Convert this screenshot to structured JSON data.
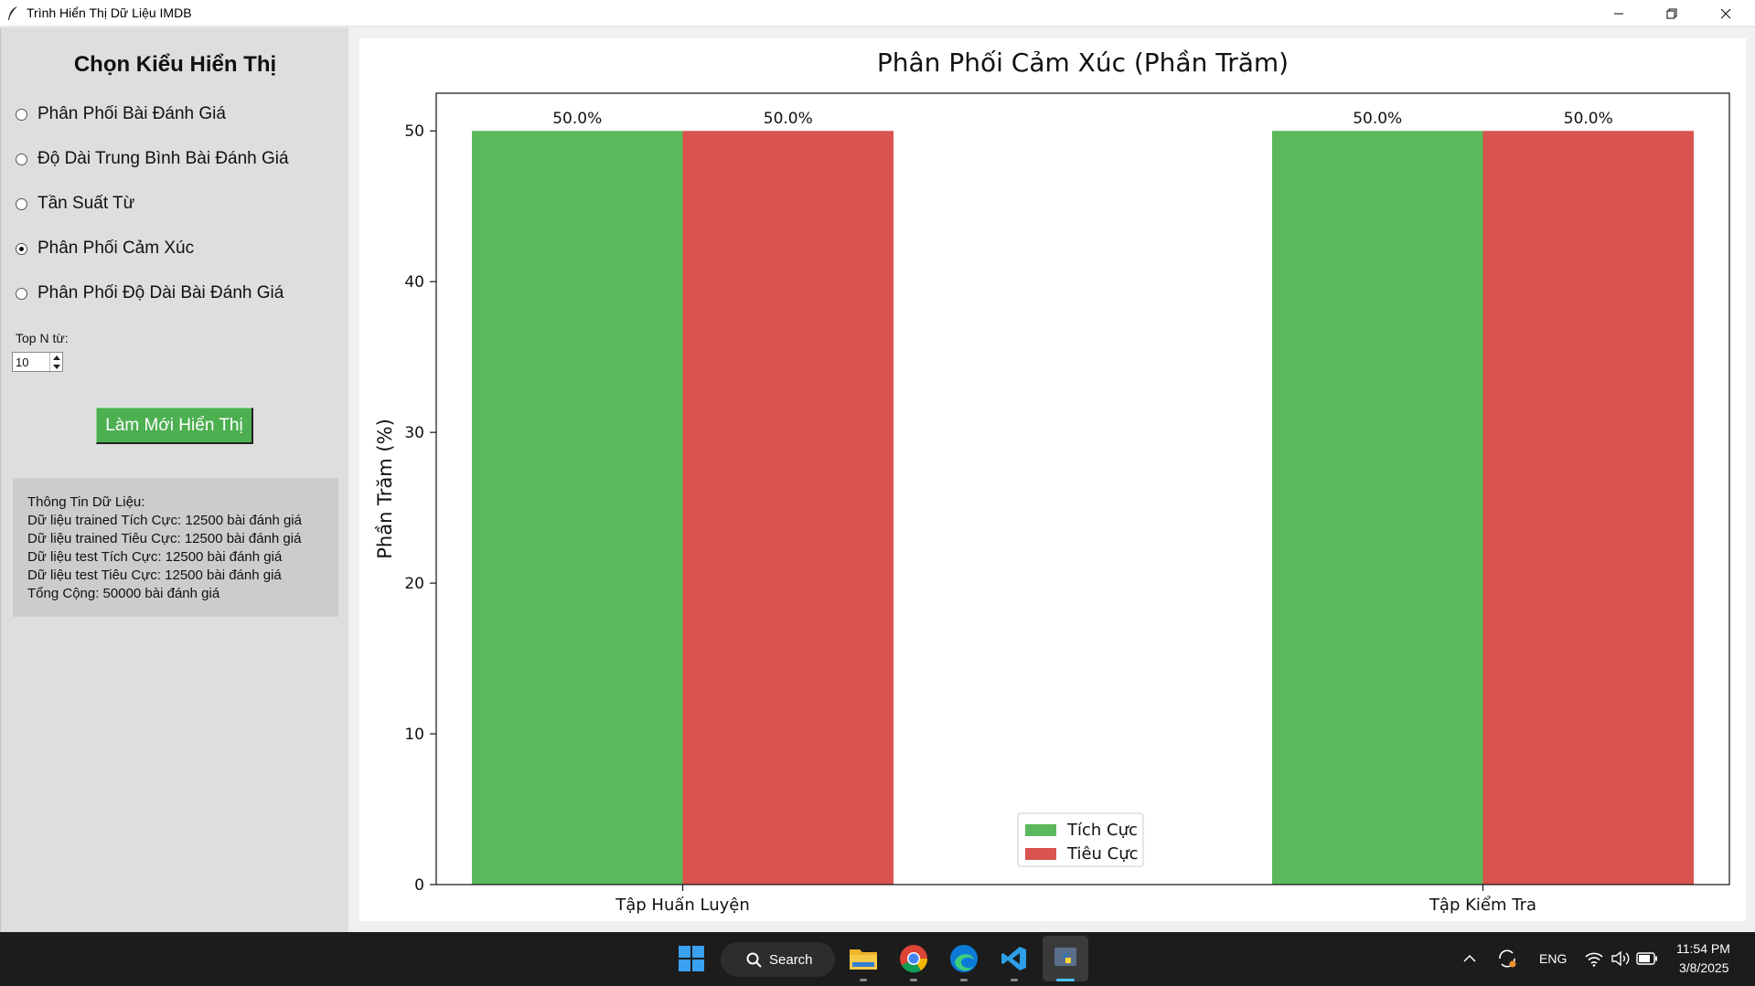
{
  "window": {
    "title": "Trình Hiển Thị Dữ Liệu IMDB"
  },
  "sidebar": {
    "title": "Chọn Kiểu Hiển Thị",
    "options": [
      {
        "label": "Phân Phối Bài Đánh Giá",
        "selected": false
      },
      {
        "label": "Độ Dài Trung Bình Bài Đánh Giá",
        "selected": false
      },
      {
        "label": "Tần Suất Từ",
        "selected": false
      },
      {
        "label": "Phân Phối Cảm Xúc",
        "selected": true
      },
      {
        "label": "Phân Phối Độ Dài Bài Đánh Giá",
        "selected": false
      }
    ],
    "top_n_label": "Top N từ:",
    "top_n_value": "10",
    "refresh_label": "Làm Mới Hiển Thị",
    "info_lines": [
      "Thông Tin Dữ Liệu:",
      "Dữ liệu trained Tích Cực: 12500 bài đánh giá",
      "Dữ liệu trained Tiêu Cực: 12500 bài đánh giá",
      "Dữ liệu test Tích Cực: 12500 bài đánh giá",
      "Dữ liệu test Tiêu Cực: 12500 bài đánh giá",
      "Tổng Cộng: 50000 bài đánh giá"
    ]
  },
  "chart_data": {
    "type": "bar",
    "title": "Phân Phối Cảm Xúc (Phần Trăm)",
    "xlabel": "",
    "ylabel": "Phần Trăm (%)",
    "categories": [
      "Tập Huấn Luyện",
      "Tập Kiểm Tra"
    ],
    "series": [
      {
        "name": "Tích Cực",
        "values": [
          50.0,
          50.0
        ],
        "color": "#5cb85c"
      },
      {
        "name": "Tiêu Cực",
        "values": [
          50.0,
          50.0
        ],
        "color": "#d9534f"
      }
    ],
    "value_labels": [
      "50.0%",
      "50.0%",
      "50.0%",
      "50.0%"
    ],
    "ylim": [
      0,
      52.5
    ],
    "yticks": [
      0,
      10,
      20,
      30,
      40,
      50
    ],
    "grid": false,
    "legend_position": "bottom-center"
  },
  "taskbar": {
    "search_label": "Search",
    "language": "ENG",
    "time": "11:54 PM",
    "date": "3/8/2025",
    "icons": [
      "windows-start-icon",
      "search-icon",
      "file-explorer-icon",
      "chrome-icon",
      "edge-icon",
      "vscode-icon",
      "python-icon"
    ]
  }
}
